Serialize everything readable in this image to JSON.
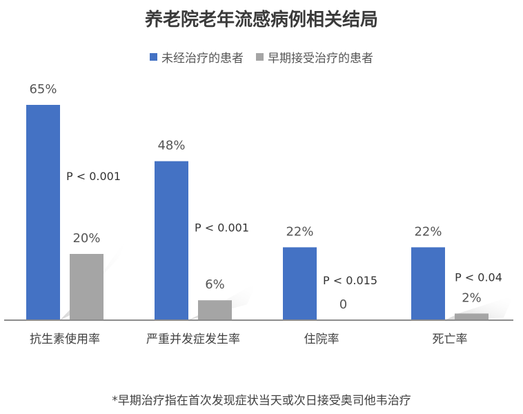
{
  "title": "养老院老年流感病例相关结局",
  "legend": {
    "items": [
      {
        "label": "未经治疗的患者",
        "color": "#4472C4"
      },
      {
        "label": "早期接受治疗的患者",
        "color": "#A5A5A5"
      }
    ]
  },
  "footnote": "*早期治疗指在首次发现症状当天或次日接受奥司他韦治疗",
  "chart_data": {
    "type": "bar",
    "title": "养老院老年流感病例相关结局",
    "categories": [
      "抗生素使用率",
      "严重并发症发生率",
      "住院率",
      "死亡率"
    ],
    "series": [
      {
        "name": "未经治疗的患者",
        "values": [
          65,
          48,
          22,
          22
        ],
        "labels": [
          "65%",
          "48%",
          "22%",
          "22%"
        ],
        "color": "#4472C4"
      },
      {
        "name": "早期接受治疗的患者",
        "values": [
          20,
          6,
          0,
          2
        ],
        "labels": [
          "20%",
          "6%",
          "0",
          "2%"
        ],
        "color": "#A5A5A5"
      }
    ],
    "p_values": [
      "P < 0.001",
      "P < 0.001",
      "P < 0.015",
      "P < 0.04"
    ],
    "ylim": [
      0,
      65
    ],
    "grid": false,
    "legend_position": "top"
  }
}
